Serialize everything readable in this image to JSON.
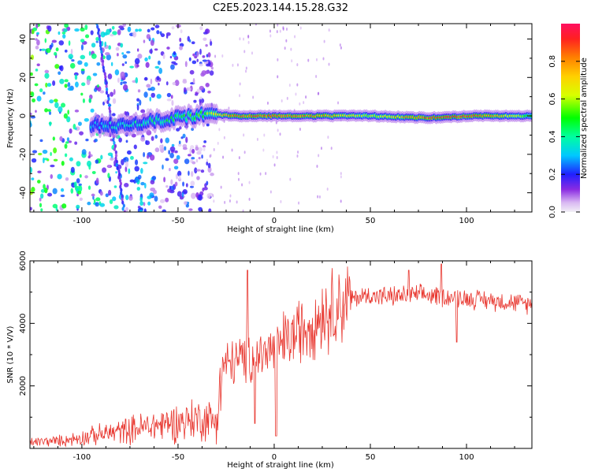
{
  "title": "C2E5.2023.144.15.28.G32",
  "chart_data": [
    {
      "type": "heatmap",
      "xlabel": "Height of straight line (km)",
      "ylabel": "Frequency (Hz)",
      "xlim": [
        -127,
        134
      ],
      "ylim": [
        -50,
        48
      ],
      "xticks": [
        -100,
        -50,
        0,
        50,
        100
      ],
      "yticks": [
        -40,
        -20,
        0,
        20,
        40
      ],
      "colorbar": {
        "label": "Normalized spectral amplitude",
        "range": [
          0,
          1
        ],
        "ticks": [
          0.0,
          0.2,
          0.4,
          0.6,
          0.8
        ]
      },
      "ridge": [
        {
          "x": -95,
          "y": -5,
          "amp": 0.3
        },
        {
          "x": -80,
          "y": -5,
          "amp": 0.35
        },
        {
          "x": -65,
          "y": -3,
          "amp": 0.4
        },
        {
          "x": -50,
          "y": -1,
          "amp": 0.45
        },
        {
          "x": -35,
          "y": 1,
          "amp": 0.55
        },
        {
          "x": -20,
          "y": 0,
          "amp": 0.85
        },
        {
          "x": 0,
          "y": 0,
          "amp": 0.88
        },
        {
          "x": 25,
          "y": 0,
          "amp": 0.8
        },
        {
          "x": 50,
          "y": 0,
          "amp": 0.6
        },
        {
          "x": 80,
          "y": -1,
          "amp": 0.88
        },
        {
          "x": 105,
          "y": 0,
          "amp": 0.9
        },
        {
          "x": 134,
          "y": 0,
          "amp": 0.5
        }
      ],
      "streaks": [
        {
          "from": [
            -92,
            48
          ],
          "to": [
            -78,
            -50
          ]
        }
      ]
    },
    {
      "type": "line",
      "xlabel": "Height of straight line (km)",
      "ylabel": "SNR (10 * V/V)",
      "xlim": [
        -127,
        134
      ],
      "ylim": [
        0,
        6000
      ],
      "xticks": [
        -100,
        -50,
        0,
        50,
        100
      ],
      "yticks": [
        2000,
        4000,
        6000
      ],
      "series_color": "#e8362e",
      "envelope": [
        {
          "x": -127,
          "y": 200
        },
        {
          "x": -110,
          "y": 250
        },
        {
          "x": -100,
          "y": 350
        },
        {
          "x": -90,
          "y": 450
        },
        {
          "x": -80,
          "y": 550
        },
        {
          "x": -70,
          "y": 650
        },
        {
          "x": -60,
          "y": 750
        },
        {
          "x": -50,
          "y": 850
        },
        {
          "x": -40,
          "y": 950
        },
        {
          "x": -30,
          "y": 900
        },
        {
          "x": -27,
          "y": 2600
        },
        {
          "x": -20,
          "y": 2800
        },
        {
          "x": -10,
          "y": 2900
        },
        {
          "x": 0,
          "y": 3200
        },
        {
          "x": 10,
          "y": 3600
        },
        {
          "x": 20,
          "y": 4100
        },
        {
          "x": 30,
          "y": 4500
        },
        {
          "x": 40,
          "y": 4800
        },
        {
          "x": 50,
          "y": 4900
        },
        {
          "x": 60,
          "y": 4850
        },
        {
          "x": 70,
          "y": 4900
        },
        {
          "x": 80,
          "y": 4900
        },
        {
          "x": 90,
          "y": 4850
        },
        {
          "x": 100,
          "y": 4800
        },
        {
          "x": 110,
          "y": 4750
        },
        {
          "x": 120,
          "y": 4700
        },
        {
          "x": 134,
          "y": 4600
        }
      ],
      "spikes": [
        {
          "x": -14,
          "y": 5700
        },
        {
          "x": -10,
          "y": 800
        },
        {
          "x": 1,
          "y": 400
        },
        {
          "x": 70,
          "y": 5700
        },
        {
          "x": 87,
          "y": 5900
        },
        {
          "x": 95,
          "y": 3400
        }
      ]
    }
  ]
}
